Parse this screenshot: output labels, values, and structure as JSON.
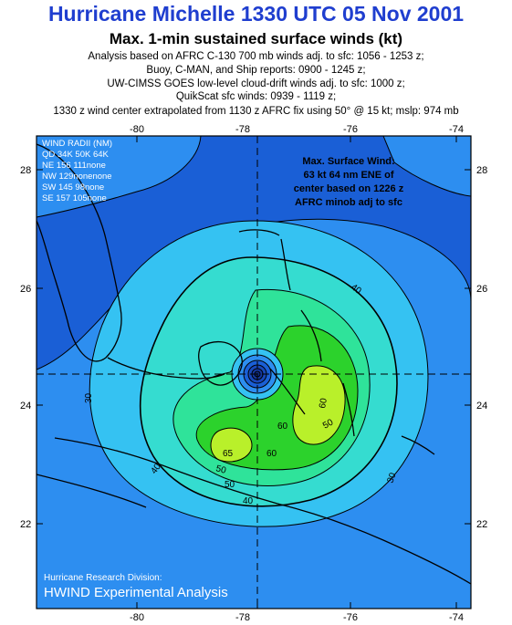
{
  "header": {
    "title": "Hurricane Michelle 1330 UTC 05 Nov 2001",
    "subtitle": "Max. 1-min sustained surface winds (kt)",
    "lines": [
      "Analysis based on AFRC C-130 700 mb winds adj. to sfc: 1056 - 1253 z;",
      "Buoy, C-MAN, and Ship reports: 0900 - 1245 z;",
      "UW-CIMSS GOES low-level cloud-drift winds adj. to sfc: 1000 z;",
      "QuikScat sfc winds: 0939 - 1119 z;",
      "1330 z wind center extrapolated from 1130 z AFRC fix using 50° @ 15 kt; mslp: 974 mb"
    ]
  },
  "map": {
    "lon_ticks": [
      "-80",
      "-78",
      "-76",
      "-74"
    ],
    "lat_ticks": [
      "28",
      "26",
      "24",
      "22"
    ],
    "contour_labels": [
      "30",
      "40",
      "50",
      "60",
      "65",
      "60",
      "50",
      "40",
      "30",
      "40",
      "50",
      "60"
    ],
    "wind_radii": {
      "title": "WIND RADII (NM)",
      "header": "QD 34K 50K 64K",
      "rows": [
        "NE 156 111none",
        "NW 129nonenone",
        "SW 145  98none",
        "SE 157 105none"
      ]
    },
    "max_wind_box": [
      "Max. Surface Wind:",
      "63 kt 64 nm ENE of",
      "center based on  1226 z",
      "AFRC minob adj to sfc"
    ],
    "credit": {
      "division": "Hurricane Research Division:",
      "product": "HWIND Experimental Analysis"
    },
    "colors": {
      "ocean_dark": "#1a5fd6",
      "level_20": "#2d8ef0",
      "level_30": "#35c2f2",
      "level_40": "#35dcd0",
      "level_50": "#2fe39a",
      "level_60": "#2cd22c",
      "level_65": "#b9f02a",
      "land": "#000000",
      "text": "#000000"
    }
  }
}
